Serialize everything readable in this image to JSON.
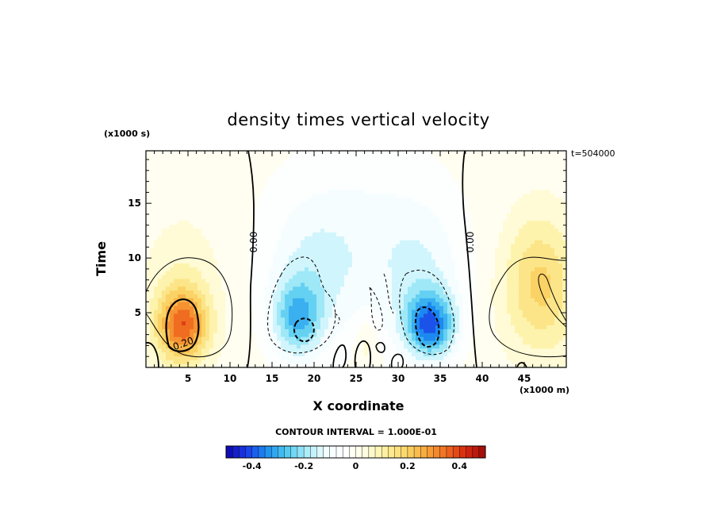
{
  "chart_data": {
    "type": "heatmap",
    "title": "density times vertical velocity",
    "xlabel": "X coordinate",
    "ylabel": "Time",
    "x_unit_label": "(x1000 m)",
    "y_unit_label": "(x1000 s)",
    "timestamp": "t=504000",
    "xlim": [
      0,
      50
    ],
    "ylim": [
      0,
      19.8
    ],
    "x_ticks": [
      "5",
      "10",
      "15",
      "20",
      "25",
      "30",
      "35",
      "40",
      "45"
    ],
    "y_ticks": [
      "5",
      "10",
      "15"
    ],
    "contour_interval_text": "CONTOUR INTERVAL = 1.000E-01",
    "contour_labels": [
      "0.00",
      "0.00",
      "0.20"
    ],
    "colorbar": {
      "range": [
        -0.5,
        0.5
      ],
      "tick_values": [
        -0.4,
        -0.2,
        0,
        0.2,
        0.4
      ],
      "tick_labels": [
        "-0.4",
        "-0.2",
        "0",
        "0.2",
        "0.4"
      ]
    },
    "features": [
      {
        "x": 4.3,
        "y": 3.8,
        "sx": 3.0,
        "sy": 3.3,
        "value": 0.33
      },
      {
        "x": 4.5,
        "y": 7.5,
        "sx": 4.5,
        "sy": 6.0,
        "value": 0.07
      },
      {
        "x": 47.0,
        "y": 6.5,
        "sx": 4.5,
        "sy": 5.5,
        "value": 0.16
      },
      {
        "x": 46.5,
        "y": 11.0,
        "sx": 4.0,
        "sy": 5.0,
        "value": 0.06
      },
      {
        "x": 18.0,
        "y": 4.5,
        "sx": 3.0,
        "sy": 3.5,
        "value": -0.24
      },
      {
        "x": 19.5,
        "y": 9.0,
        "sx": 5.0,
        "sy": 6.0,
        "value": -0.08
      },
      {
        "x": 33.8,
        "y": 3.9,
        "sx": 3.0,
        "sy": 3.0,
        "value": -0.34
      },
      {
        "x": 33.0,
        "y": 8.5,
        "sx": 4.5,
        "sy": 6.0,
        "value": -0.08
      },
      {
        "x": 26.5,
        "y": 10.0,
        "sx": 9.0,
        "sy": 8.0,
        "value": -0.06
      },
      {
        "x": 26.3,
        "y": 2.2,
        "sx": 1.3,
        "sy": 2.5,
        "value": 0.07
      },
      {
        "x": 25.0,
        "y": 13.0,
        "sx": 12.0,
        "sy": 10.0,
        "value": -0.04
      }
    ]
  },
  "colors": {
    "colorbar_stops": [
      "#0d05a8",
      "#1b3ae8",
      "#1c8df0",
      "#4ec8f0",
      "#a8ecf8",
      "#f2fdff",
      "#ffffff",
      "#fffde0",
      "#fdf0a0",
      "#fbd76a",
      "#f8a93c",
      "#f06f22",
      "#d82a10",
      "#9e0a0a"
    ]
  }
}
